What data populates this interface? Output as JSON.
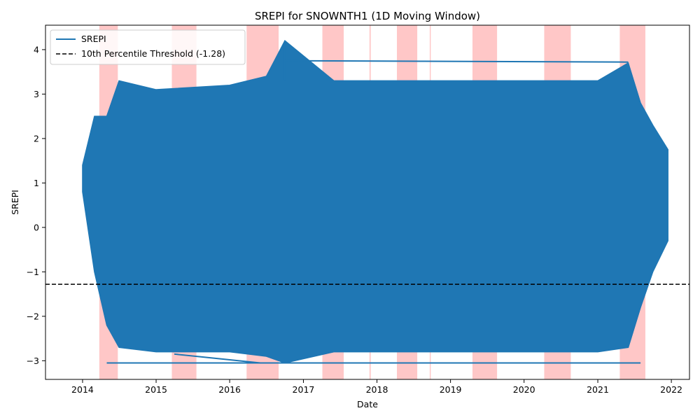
{
  "chart_data": {
    "type": "line",
    "title": "SREPI for SNOWNTH1 (1D Moving Window)",
    "xlabel": "Date",
    "ylabel": "SREPI",
    "x_range": [
      "2013-07-01",
      "2022-04-01"
    ],
    "xticks": [
      "2014",
      "2015",
      "2016",
      "2017",
      "2018",
      "2019",
      "2020",
      "2021",
      "2022"
    ],
    "ylim": [
      -3.42,
      4.55
    ],
    "yticks": [
      -3,
      -2,
      -1,
      0,
      1,
      2,
      3,
      4
    ],
    "grid": false,
    "legend_position": "upper-left",
    "series": [
      {
        "name": "SREPI",
        "color": "#1f77b4",
        "style": "solid",
        "envelope": {
          "x": [
            "2014-01-01",
            "2014-03-01",
            "2014-05-01",
            "2014-07-01",
            "2015-01-01",
            "2016-01-01",
            "2016-07-01",
            "2016-10-01",
            "2017-06-01",
            "2018-06-01",
            "2019-01-01",
            "2020-01-01",
            "2021-01-01",
            "2021-06-01",
            "2021-08-01",
            "2021-10-01",
            "2021-12-15"
          ],
          "upper": [
            1.4,
            2.5,
            2.5,
            3.3,
            3.1,
            3.2,
            3.4,
            4.2,
            3.3,
            3.3,
            3.3,
            3.3,
            3.3,
            3.7,
            2.8,
            2.3,
            1.75
          ],
          "lower": [
            0.8,
            -1.0,
            -2.2,
            -2.7,
            -2.8,
            -2.8,
            -2.9,
            -3.05,
            -2.8,
            -2.8,
            -2.8,
            -2.8,
            -2.8,
            -2.7,
            -1.8,
            -1.0,
            -0.3
          ]
        },
        "extremes": {
          "max": 4.2,
          "min": -3.05
        }
      },
      {
        "name": "10th Percentile Threshold (-1.28)",
        "color": "#000000",
        "style": "dashed",
        "y": -1.28
      }
    ],
    "highlight_color": "#ff0000",
    "highlight_spans": [
      [
        "2014-03-25",
        "2014-06-25"
      ],
      [
        "2015-03-20",
        "2015-07-20"
      ],
      [
        "2016-03-25",
        "2016-08-31"
      ],
      [
        "2017-04-05",
        "2017-07-20"
      ],
      [
        "2017-11-25",
        "2017-12-01"
      ],
      [
        "2018-04-10",
        "2018-07-20"
      ],
      [
        "2018-09-20",
        "2018-09-25"
      ],
      [
        "2019-04-20",
        "2019-08-20"
      ],
      [
        "2020-04-10",
        "2020-08-20"
      ],
      [
        "2021-04-20",
        "2021-08-25"
      ]
    ]
  }
}
